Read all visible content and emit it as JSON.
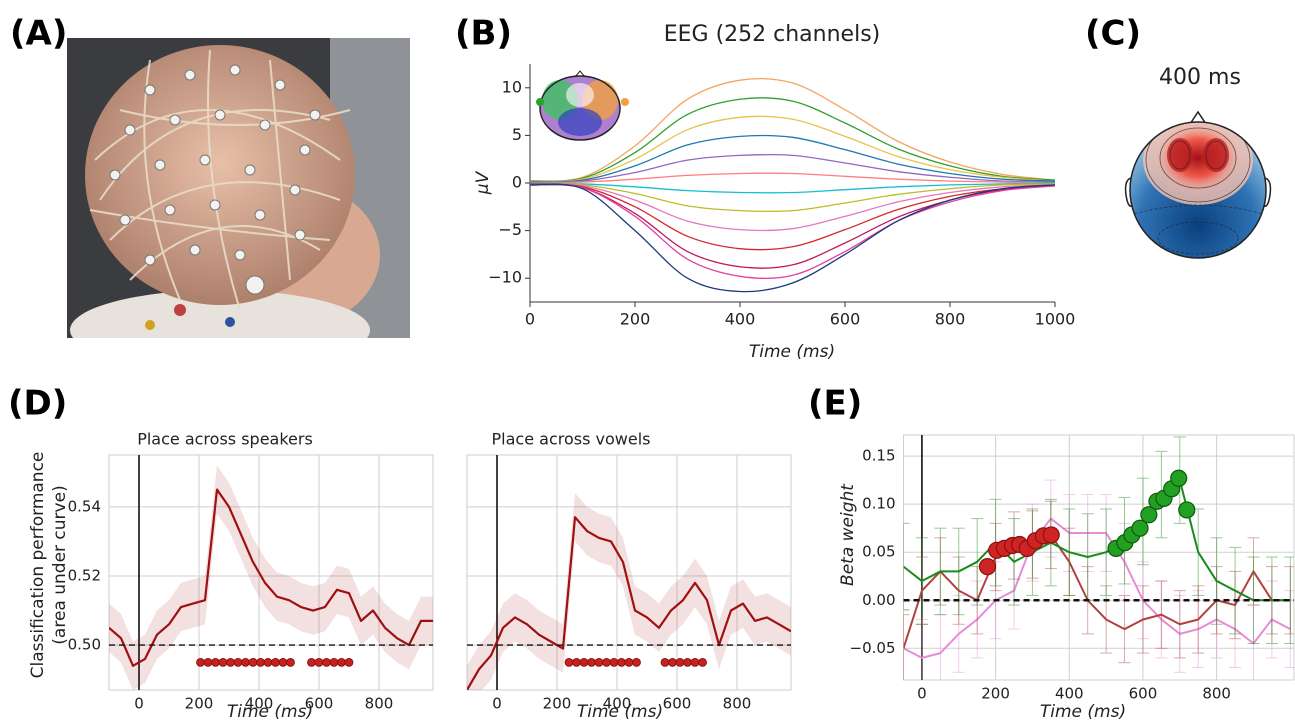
{
  "panel_labels": [
    "(A)",
    "(B)",
    "(C)",
    "(D)",
    "(E)"
  ],
  "topomap_title": "400 ms",
  "chart_data": [
    {
      "type": "line",
      "title": "EEG (252 channels)",
      "xlabel": "Time (ms)",
      "ylabel": "μV",
      "x": [
        0,
        100,
        200,
        300,
        400,
        500,
        600,
        700,
        800,
        900,
        1000
      ],
      "series": [
        {
          "color": "#f4a460",
          "values": [
            0.2,
            0.6,
            3.9,
            8.8,
            10.8,
            10.5,
            7.7,
            4.4,
            2.2,
            0.9,
            0.3
          ]
        },
        {
          "color": "#2ca02c",
          "values": [
            0.2,
            0.5,
            3.2,
            7.2,
            8.8,
            8.6,
            6.3,
            3.6,
            1.8,
            0.7,
            0.3
          ]
        },
        {
          "color": "#e8c34a",
          "values": [
            0.1,
            0.4,
            2.5,
            5.6,
            6.9,
            6.7,
            4.9,
            2.8,
            1.4,
            0.6,
            0.2
          ]
        },
        {
          "color": "#1f77b4",
          "values": [
            0.1,
            0.3,
            1.8,
            4.0,
            4.9,
            4.8,
            3.5,
            2.0,
            1.0,
            0.4,
            0.2
          ]
        },
        {
          "color": "#9467bd",
          "values": [
            0.1,
            0.2,
            1.1,
            2.4,
            2.9,
            2.9,
            2.1,
            1.2,
            0.6,
            0.2,
            0.1
          ]
        },
        {
          "color": "#ff7f7f",
          "values": [
            0.0,
            0.1,
            0.4,
            0.8,
            1.0,
            1.0,
            0.7,
            0.4,
            0.2,
            0.1,
            0.0
          ]
        },
        {
          "color": "#17becf",
          "values": [
            0.0,
            -0.1,
            -0.4,
            -0.8,
            -1.0,
            -1.0,
            -0.7,
            -0.4,
            -0.2,
            -0.1,
            0.0
          ]
        },
        {
          "color": "#bcbd22",
          "values": [
            -0.1,
            -0.2,
            -1.1,
            -2.4,
            -2.9,
            -2.9,
            -2.1,
            -1.2,
            -0.6,
            -0.2,
            -0.1
          ]
        },
        {
          "color": "#e377c2",
          "values": [
            -0.1,
            -0.3,
            -1.8,
            -4.0,
            -4.9,
            -4.8,
            -3.5,
            -2.0,
            -1.0,
            -0.4,
            -0.2
          ]
        },
        {
          "color": "#d62728",
          "values": [
            -0.1,
            -0.4,
            -2.5,
            -5.6,
            -6.9,
            -6.7,
            -4.9,
            -2.8,
            -1.4,
            -0.6,
            -0.2
          ]
        },
        {
          "color": "#c2185b",
          "values": [
            -0.2,
            -0.5,
            -3.2,
            -7.2,
            -8.8,
            -8.6,
            -6.3,
            -3.6,
            -1.8,
            -0.7,
            -0.3
          ]
        },
        {
          "color": "#e040a0",
          "values": [
            -0.2,
            -0.5,
            -3.5,
            -8.0,
            -9.8,
            -9.7,
            -7.2,
            -4.0,
            -2.0,
            -0.8,
            -0.3
          ]
        },
        {
          "color": "#1a3a7a",
          "values": [
            -0.2,
            -0.6,
            -5.0,
            -10.0,
            -11.4,
            -10.5,
            -7.5,
            -4.0,
            -1.8,
            -0.6,
            -0.2
          ]
        }
      ],
      "xlim": [
        0,
        1000
      ],
      "ylim": [
        -12.5,
        12.5
      ],
      "xticks": [
        0,
        200,
        400,
        600,
        800,
        1000
      ],
      "yticks": [
        {
          "value": -10,
          "label": "−10"
        },
        {
          "value": -5,
          "label": "−5"
        },
        0,
        5,
        10
      ],
      "grid": false
    },
    {
      "type": "line",
      "title": "Place across speakers",
      "xlabel": "Time (ms)",
      "ylabel": [
        "Classification performance",
        "(area under curve)"
      ],
      "x": [
        -100,
        -60,
        -20,
        20,
        60,
        100,
        140,
        180,
        220,
        260,
        300,
        340,
        380,
        420,
        460,
        500,
        540,
        580,
        620,
        660,
        700,
        740,
        780,
        820,
        860,
        900,
        940,
        980
      ],
      "series": [
        {
          "color": "#a01010",
          "values": [
            0.505,
            0.502,
            0.494,
            0.496,
            0.503,
            0.506,
            0.511,
            0.512,
            0.513,
            0.545,
            0.54,
            0.532,
            0.524,
            0.518,
            0.514,
            0.513,
            0.511,
            0.51,
            0.511,
            0.516,
            0.515,
            0.507,
            0.51,
            0.505,
            0.502,
            0.5,
            0.507,
            0.507
          ],
          "ci_lower": [
            0.498,
            0.495,
            0.487,
            0.489,
            0.496,
            0.499,
            0.504,
            0.505,
            0.506,
            0.538,
            0.533,
            0.525,
            0.517,
            0.511,
            0.507,
            0.506,
            0.504,
            0.503,
            0.504,
            0.509,
            0.508,
            0.5,
            0.503,
            0.498,
            0.495,
            0.493,
            0.5,
            0.5
          ],
          "ci_upper": [
            0.512,
            0.509,
            0.501,
            0.503,
            0.51,
            0.513,
            0.518,
            0.519,
            0.52,
            0.552,
            0.547,
            0.539,
            0.531,
            0.525,
            0.521,
            0.52,
            0.518,
            0.517,
            0.518,
            0.523,
            0.522,
            0.514,
            0.517,
            0.512,
            0.509,
            0.507,
            0.514,
            0.514
          ]
        }
      ],
      "significant_x": [
        205,
        230,
        255,
        280,
        305,
        330,
        355,
        380,
        405,
        430,
        455,
        480,
        505,
        575,
        600,
        625,
        650,
        675,
        700
      ],
      "significant_y": 0.495,
      "hline": 0.5,
      "vline": 0,
      "xlim": [
        -100,
        980
      ],
      "ylim": [
        0.487,
        0.555
      ],
      "xticks": [
        0,
        200,
        400,
        600,
        800
      ],
      "yticks": [
        {
          "value": 0.5,
          "label": "0.50"
        },
        0.52,
        0.54
      ],
      "ytick_labels": true,
      "grid": true
    },
    {
      "type": "line",
      "title": "Place across vowels",
      "xlabel": "Time (ms)",
      "x": [
        -100,
        -60,
        -20,
        20,
        60,
        100,
        140,
        180,
        220,
        260,
        300,
        340,
        380,
        420,
        460,
        500,
        540,
        580,
        620,
        660,
        700,
        740,
        780,
        820,
        860,
        900,
        940,
        980
      ],
      "series": [
        {
          "color": "#a01010",
          "values": [
            0.487,
            0.493,
            0.497,
            0.505,
            0.508,
            0.506,
            0.503,
            0.501,
            0.499,
            0.537,
            0.533,
            0.531,
            0.53,
            0.524,
            0.51,
            0.508,
            0.505,
            0.51,
            0.513,
            0.518,
            0.513,
            0.5,
            0.51,
            0.512,
            0.507,
            0.508,
            0.506,
            0.504
          ],
          "ci_lower": [
            0.48,
            0.486,
            0.49,
            0.498,
            0.501,
            0.499,
            0.496,
            0.494,
            0.492,
            0.53,
            0.526,
            0.524,
            0.523,
            0.517,
            0.503,
            0.501,
            0.498,
            0.503,
            0.506,
            0.511,
            0.506,
            0.493,
            0.503,
            0.505,
            0.5,
            0.501,
            0.499,
            0.497
          ],
          "ci_upper": [
            0.494,
            0.5,
            0.504,
            0.512,
            0.515,
            0.513,
            0.51,
            0.508,
            0.506,
            0.544,
            0.54,
            0.538,
            0.537,
            0.531,
            0.517,
            0.515,
            0.512,
            0.517,
            0.52,
            0.525,
            0.52,
            0.507,
            0.517,
            0.519,
            0.514,
            0.515,
            0.513,
            0.511
          ]
        }
      ],
      "significant_x": [
        240,
        265,
        290,
        315,
        340,
        365,
        390,
        415,
        440,
        465,
        560,
        585,
        610,
        635,
        660,
        685
      ],
      "significant_y": 0.495,
      "hline": 0.5,
      "vline": 0,
      "xlim": [
        -100,
        980
      ],
      "ylim": [
        0.487,
        0.555
      ],
      "xticks": [
        0,
        200,
        400,
        600,
        800
      ],
      "yticks": [
        0.5,
        0.52,
        0.54
      ],
      "ytick_labels": false,
      "grid": true
    },
    {
      "type": "line",
      "xlabel": "Time (ms)",
      "ylabel": "Beta weight",
      "x": [
        -50,
        0,
        50,
        100,
        150,
        200,
        250,
        300,
        350,
        400,
        450,
        500,
        550,
        600,
        650,
        700,
        750,
        800,
        850,
        900,
        950,
        1000
      ],
      "series": [
        {
          "color": "#e88ad6",
          "values": [
            -0.05,
            -0.06,
            -0.055,
            -0.035,
            -0.02,
            0.0,
            0.01,
            0.06,
            0.085,
            0.07,
            0.07,
            0.07,
            0.04,
            0.0,
            -0.02,
            -0.035,
            -0.03,
            -0.02,
            -0.03,
            -0.045,
            -0.02,
            -0.03
          ],
          "errors": [
            0.04,
            0.04,
            0.04,
            0.04,
            0.04,
            0.04,
            0.04,
            0.04,
            0.04,
            0.04,
            0.04,
            0.04,
            0.04,
            0.04,
            0.04,
            0.04,
            0.04,
            0.04,
            0.04,
            0.04,
            0.04,
            0.04
          ]
        },
        {
          "color": "#b34040",
          "values": [
            -0.05,
            0.01,
            0.03,
            0.01,
            0.0,
            0.045,
            0.057,
            0.058,
            0.068,
            0.04,
            0.0,
            -0.02,
            -0.03,
            -0.02,
            -0.015,
            -0.025,
            -0.02,
            0.0,
            -0.005,
            0.03,
            0.0,
            0.0
          ],
          "errors": [
            0.035,
            0.035,
            0.035,
            0.035,
            0.035,
            0.035,
            0.035,
            0.035,
            0.035,
            0.035,
            0.035,
            0.035,
            0.035,
            0.035,
            0.035,
            0.035,
            0.035,
            0.035,
            0.035,
            0.035,
            0.035,
            0.035
          ],
          "highlight_x": [
            178,
            203,
            224,
            246,
            265,
            286,
            308,
            330,
            351
          ],
          "highlight_values": [
            0.035,
            0.052,
            0.054,
            0.057,
            0.058,
            0.054,
            0.062,
            0.067,
            0.068
          ]
        },
        {
          "color": "#1a8a1a",
          "values": [
            0.035,
            0.02,
            0.03,
            0.03,
            0.04,
            0.06,
            0.04,
            0.05,
            0.06,
            0.05,
            0.045,
            0.05,
            0.062,
            0.082,
            0.11,
            0.125,
            0.05,
            0.02,
            0.01,
            0.0,
            0.0,
            0.0
          ],
          "errors": [
            0.045,
            0.045,
            0.045,
            0.045,
            0.045,
            0.045,
            0.045,
            0.045,
            0.045,
            0.045,
            0.045,
            0.045,
            0.045,
            0.045,
            0.045,
            0.045,
            0.045,
            0.045,
            0.045,
            0.045,
            0.045,
            0.045
          ],
          "highlight_x": [
            527,
            551,
            570,
            592,
            616,
            638,
            657,
            678,
            697,
            719
          ],
          "highlight_values": [
            0.054,
            0.06,
            0.068,
            0.075,
            0.089,
            0.103,
            0.106,
            0.116,
            0.127,
            0.094
          ]
        }
      ],
      "hline": 0,
      "vline": 0,
      "xlim": [
        -50,
        1010
      ],
      "ylim": [
        -0.083,
        0.172
      ],
      "xticks": [
        0,
        200,
        400,
        600,
        800
      ],
      "yticks": [
        {
          "value": -0.05,
          "label": "−0.05"
        },
        {
          "value": 0,
          "label": "0.00"
        },
        0.05,
        {
          "value": 0.1,
          "label": "0.10"
        },
        0.15
      ],
      "ytick_labels": true,
      "grid": true
    }
  ]
}
